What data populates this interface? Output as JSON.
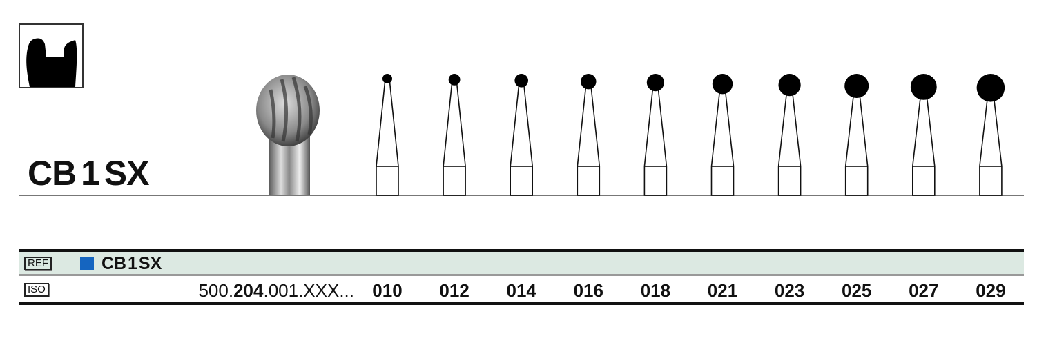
{
  "product": {
    "name": "CB 1 SX",
    "shape_icon": "bur-profile-silhouette-icon"
  },
  "table": {
    "ref_label": "REF",
    "ref_color": "#1565c0",
    "ref_value": "CB 1 SX",
    "iso_label": "ISO",
    "iso_prefix_parts": [
      "500.",
      "204",
      ".001.XXX..."
    ],
    "sizes": [
      "010",
      "012",
      "014",
      "016",
      "018",
      "021",
      "023",
      "025",
      "027",
      "029"
    ]
  },
  "colors": {
    "ref_row_background": "#dce9e2"
  }
}
